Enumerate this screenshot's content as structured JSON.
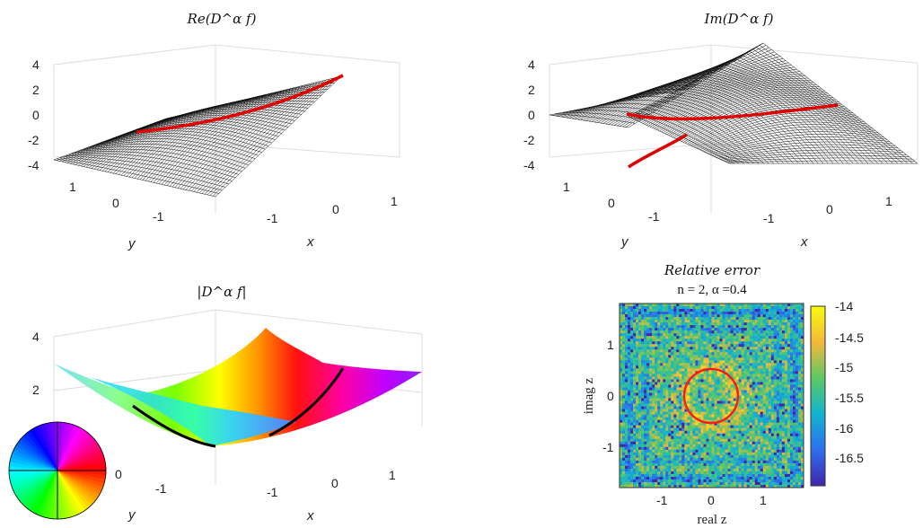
{
  "chart_data": [
    {
      "type": "surface",
      "title": "Re(D^α f)",
      "zlim": [
        -4,
        4
      ],
      "z_ticks": [
        "4",
        "2",
        "0",
        "-2",
        "-4"
      ],
      "x_ticks": [
        "-1",
        "0",
        "1"
      ],
      "y_ticks": [
        "1",
        "0",
        "-1"
      ],
      "xlabel": "x",
      "ylabel": "y",
      "overlay": "red curve along the real segment"
    },
    {
      "type": "surface",
      "title": "Im(D^α f)",
      "zlim": [
        -4,
        4
      ],
      "z_ticks": [
        "4",
        "2",
        "0",
        "-2",
        "-4"
      ],
      "x_ticks": [
        "-1",
        "0",
        "1"
      ],
      "y_ticks": [
        "1",
        "0",
        "-1"
      ],
      "xlabel": "x",
      "ylabel": "y",
      "overlay": "red curve with a jump along the real segment"
    },
    {
      "type": "surface",
      "title": "|D^α f|",
      "z_ticks": [
        "4",
        "2"
      ],
      "x_ticks": [
        "-1",
        "0",
        "1"
      ],
      "y_ticks": [
        "0",
        "-1"
      ],
      "xlabel": "x",
      "ylabel": "y",
      "coloring": "phase (color wheel)",
      "overlay": "black curves"
    },
    {
      "type": "heatmap",
      "title": "Relative error",
      "subtitle": "n = 2, α =0.4",
      "xlabel": "real z",
      "ylabel": "imag z",
      "x_ticks": [
        "-1",
        "0",
        "1"
      ],
      "y_ticks": [
        "1",
        "0",
        "-1"
      ],
      "xlim": [
        -1.7,
        1.7
      ],
      "ylim": [
        -1.7,
        1.7
      ],
      "colorbar_ticks": [
        "-14",
        "-14.5",
        "-15",
        "-15.5",
        "-16",
        "-16.5"
      ],
      "clim": [
        -16.9,
        -13.9
      ],
      "overlay": "red unit circle of radius 0.5"
    }
  ]
}
